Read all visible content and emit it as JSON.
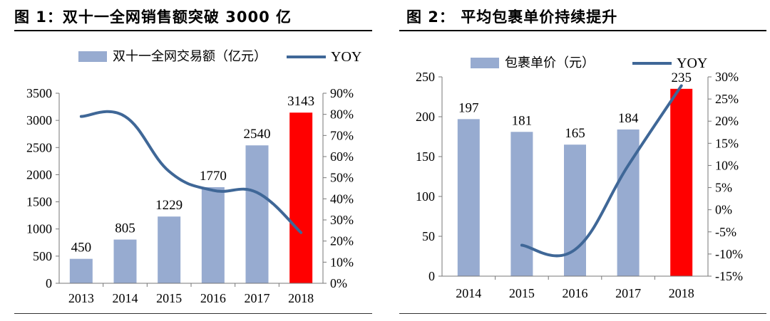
{
  "chart_data": [
    {
      "type": "bar",
      "title": "图 1：双十一全网销售额突破 3000 亿",
      "categories": [
        "2013",
        "2014",
        "2015",
        "2016",
        "2017",
        "2018"
      ],
      "series": [
        {
          "name": "双十一全网交易额（亿元）",
          "type": "bar",
          "axis": "left",
          "values": [
            450,
            805,
            1229,
            1770,
            2540,
            3143
          ],
          "labels": [
            "450",
            "805",
            "1229",
            "1770",
            "2540",
            "3143"
          ]
        },
        {
          "name": "YOY",
          "type": "line",
          "axis": "right",
          "values": [
            0.79,
            0.79,
            0.53,
            0.44,
            0.43,
            0.24
          ]
        }
      ],
      "left_axis": {
        "min": 0,
        "max": 3500,
        "ticks": [
          "0",
          "500",
          "1000",
          "1500",
          "2000",
          "2500",
          "3000",
          "3500"
        ]
      },
      "right_axis": {
        "min": 0,
        "max": 0.9,
        "ticks": [
          "0%",
          "10%",
          "20%",
          "30%",
          "40%",
          "50%",
          "60%",
          "70%",
          "80%",
          "90%"
        ]
      },
      "colors": {
        "bar": "#97abd0",
        "highlight": "#ff0000",
        "line": "#3f6797"
      },
      "highlight_index": 5,
      "legend_position": "top"
    },
    {
      "type": "bar",
      "title": "图 2： 平均包裹单价持续提升",
      "categories": [
        "2014",
        "2015",
        "2016",
        "2017",
        "2018"
      ],
      "series": [
        {
          "name": "包裹单价（元）",
          "type": "bar",
          "axis": "left",
          "values": [
            197,
            181,
            165,
            184,
            235
          ],
          "labels": [
            "197",
            "181",
            "165",
            "184",
            "235"
          ]
        },
        {
          "name": "YOY",
          "type": "line",
          "axis": "right",
          "values": [
            null,
            -0.08,
            -0.09,
            0.1,
            0.28
          ]
        }
      ],
      "left_axis": {
        "min": 0,
        "max": 250,
        "ticks": [
          "0",
          "50",
          "100",
          "150",
          "200",
          "250"
        ]
      },
      "right_axis": {
        "min": -0.15,
        "max": 0.3,
        "ticks": [
          "-15%",
          "-10%",
          "-5%",
          "0%",
          "5%",
          "10%",
          "15%",
          "20%",
          "25%",
          "30%"
        ]
      },
      "colors": {
        "bar": "#97abd0",
        "highlight": "#ff0000",
        "line": "#3f6797"
      },
      "highlight_index": 4,
      "legend_position": "top"
    }
  ]
}
